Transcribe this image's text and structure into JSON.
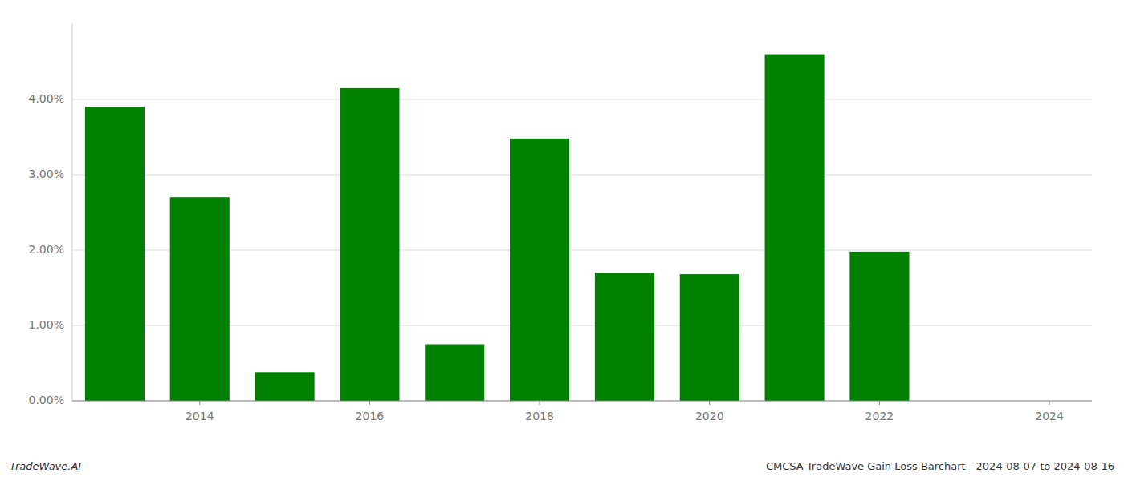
{
  "chart_data": {
    "type": "bar",
    "x": [
      2013,
      2014,
      2015,
      2016,
      2017,
      2018,
      2019,
      2020,
      2021,
      2022,
      2023
    ],
    "values": [
      3.9,
      2.7,
      0.38,
      4.15,
      0.75,
      3.48,
      1.7,
      1.68,
      4.6,
      1.98,
      0.0
    ],
    "color": "#008000",
    "xlim": [
      2012.5,
      2024.5
    ],
    "xticks": [
      2014,
      2016,
      2018,
      2020,
      2022,
      2024
    ],
    "ylim": [
      0,
      5.0
    ],
    "yticks": [
      {
        "value": 0.0,
        "label": "0.00%"
      },
      {
        "value": 1.0,
        "label": "1.00%"
      },
      {
        "value": 2.0,
        "label": "2.00%"
      },
      {
        "value": 3.0,
        "label": "3.00%"
      },
      {
        "value": 4.0,
        "label": "4.00%"
      }
    ],
    "grid": true,
    "annotations": [
      "TradeWave.AI",
      "CMCSA TradeWave Gain Loss Barchart - 2024-08-07 to 2024-08-16"
    ]
  }
}
